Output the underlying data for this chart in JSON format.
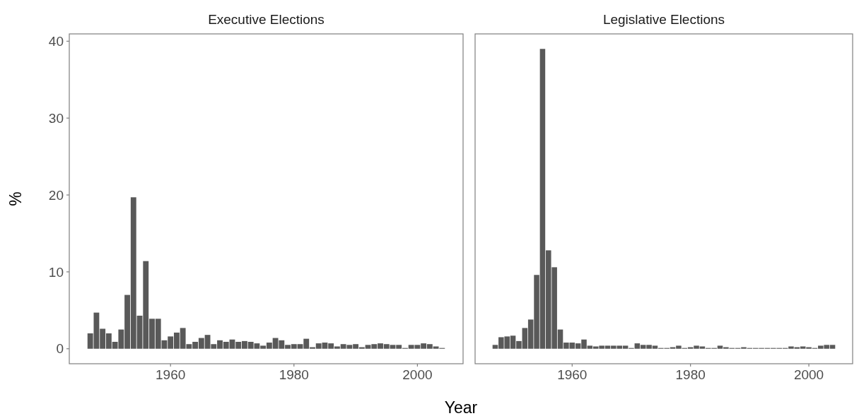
{
  "chart_data": [
    {
      "type": "bar",
      "title": "Executive Elections",
      "ylabel": "%",
      "xlabel": "Year",
      "color": "#595959",
      "grid": false,
      "xlim": [
        1943.6,
        2007.4
      ],
      "xticks": [
        1960,
        1980,
        2000
      ],
      "ylim": [
        -1.95,
        40.95
      ],
      "yticks": [
        0,
        10,
        20,
        30,
        40
      ],
      "x": [
        1947,
        1948,
        1949,
        1950,
        1951,
        1952,
        1953,
        1954,
        1955,
        1956,
        1957,
        1958,
        1959,
        1960,
        1961,
        1962,
        1963,
        1964,
        1965,
        1966,
        1967,
        1968,
        1969,
        1970,
        1971,
        1972,
        1973,
        1974,
        1975,
        1976,
        1977,
        1978,
        1979,
        1980,
        1981,
        1982,
        1983,
        1984,
        1985,
        1986,
        1987,
        1988,
        1989,
        1990,
        1991,
        1992,
        1993,
        1994,
        1995,
        1996,
        1997,
        1998,
        1999,
        2000,
        2001,
        2002,
        2003,
        2004
      ],
      "values": [
        2.0,
        4.7,
        2.6,
        2.0,
        0.9,
        2.5,
        7.0,
        19.7,
        4.3,
        11.4,
        3.9,
        3.9,
        1.1,
        1.6,
        2.1,
        2.7,
        0.6,
        0.9,
        1.4,
        1.8,
        0.6,
        1.1,
        0.9,
        1.2,
        0.9,
        1.0,
        0.9,
        0.7,
        0.4,
        0.8,
        1.4,
        1.1,
        0.5,
        0.6,
        0.6,
        1.3,
        0.2,
        0.7,
        0.8,
        0.7,
        0.3,
        0.6,
        0.5,
        0.6,
        0.2,
        0.5,
        0.6,
        0.7,
        0.6,
        0.5,
        0.5,
        0.1,
        0.5,
        0.5,
        0.7,
        0.6,
        0.3,
        0.1
      ]
    },
    {
      "type": "bar",
      "title": "Legislative Elections",
      "color": "#595959",
      "grid": false,
      "tick_labels": "x",
      "xlim": [
        1943.6,
        2007.4
      ],
      "xticks": [
        1960,
        1980,
        2000
      ],
      "ylim": [
        -1.95,
        40.95
      ],
      "yticks": [
        0,
        10,
        20,
        30,
        40
      ],
      "x": [
        1947,
        1948,
        1949,
        1950,
        1951,
        1952,
        1953,
        1954,
        1955,
        1956,
        1957,
        1958,
        1959,
        1960,
        1961,
        1962,
        1963,
        1964,
        1965,
        1966,
        1967,
        1968,
        1969,
        1970,
        1971,
        1972,
        1973,
        1974,
        1975,
        1976,
        1977,
        1978,
        1979,
        1980,
        1981,
        1982,
        1983,
        1984,
        1985,
        1986,
        1987,
        1988,
        1989,
        1990,
        1991,
        1992,
        1993,
        1994,
        1995,
        1996,
        1997,
        1998,
        1999,
        2000,
        2001,
        2002,
        2003,
        2004
      ],
      "values": [
        0.5,
        1.5,
        1.6,
        1.7,
        1.0,
        2.7,
        3.8,
        9.6,
        39.0,
        12.8,
        10.6,
        2.5,
        0.8,
        0.8,
        0.7,
        1.2,
        0.4,
        0.3,
        0.4,
        0.4,
        0.4,
        0.4,
        0.4,
        0.1,
        0.7,
        0.5,
        0.5,
        0.4,
        0.1,
        0.1,
        0.2,
        0.4,
        0.1,
        0.2,
        0.4,
        0.3,
        0.1,
        0.1,
        0.4,
        0.2,
        0.1,
        0.1,
        0.2,
        0.1,
        0.1,
        0.1,
        0.1,
        0.1,
        0.1,
        0.1,
        0.3,
        0.2,
        0.3,
        0.2,
        0.1,
        0.4,
        0.5,
        0.5
      ]
    }
  ]
}
